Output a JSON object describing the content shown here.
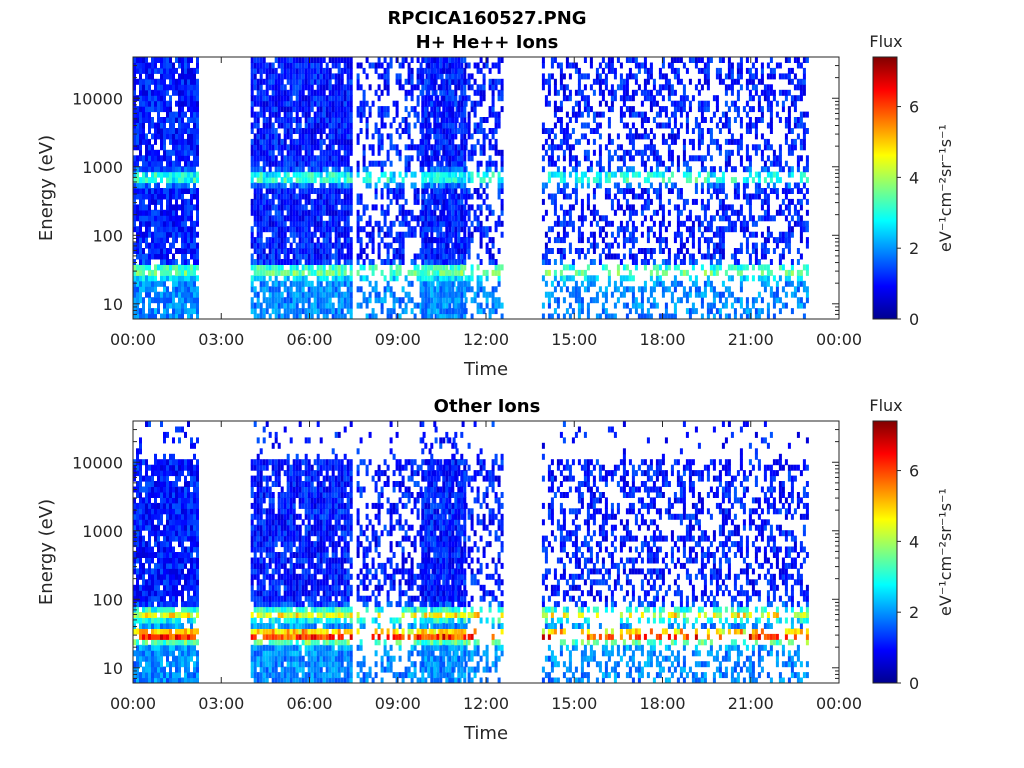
{
  "figure": {
    "title": "RPCICA160527.PNG"
  },
  "colorbar": {
    "title": "Flux",
    "label": "eV⁻¹cm⁻²sr⁻¹s⁻¹",
    "ticks": [
      "0",
      "2",
      "4",
      "6"
    ],
    "range": [
      0,
      7.4
    ],
    "colormap": "jet"
  },
  "chart_data": [
    {
      "type": "heatmap",
      "title": "H+ He++ Ions",
      "xlabel": "Time",
      "ylabel": "Energy (eV)",
      "x_ticks": [
        "00:00",
        "03:00",
        "06:00",
        "09:00",
        "12:00",
        "15:00",
        "18:00",
        "21:00",
        "00:00"
      ],
      "xlim_hours": [
        0,
        24
      ],
      "y_scale": "log",
      "y_ticks": [
        "10",
        "100",
        "1000",
        "10000"
      ],
      "ylim_eV": [
        6,
        40000
      ],
      "data_intervals_hours": [
        [
          0.0,
          2.2
        ],
        [
          4.0,
          7.4
        ],
        [
          7.6,
          12.5
        ],
        [
          9.8,
          11.3
        ],
        [
          13.9,
          22.9
        ]
      ],
      "features": [
        {
          "name": "solar wind band",
          "energy_eV": 700,
          "intensity": 2.5
        },
        {
          "name": "low-energy band",
          "energy_eV": 30,
          "intensity": 2.0
        }
      ]
    },
    {
      "type": "heatmap",
      "title": "Other Ions",
      "xlabel": "Time",
      "ylabel": "Energy (eV)",
      "x_ticks": [
        "00:00",
        "03:00",
        "06:00",
        "09:00",
        "12:00",
        "15:00",
        "18:00",
        "21:00",
        "00:00"
      ],
      "xlim_hours": [
        0,
        24
      ],
      "y_scale": "log",
      "y_ticks": [
        "10",
        "100",
        "1000",
        "10000"
      ],
      "ylim_eV": [
        6,
        40000
      ],
      "data_intervals_hours": [
        [
          0.0,
          2.2
        ],
        [
          4.0,
          7.4
        ],
        [
          7.6,
          12.5
        ],
        [
          9.8,
          11.3
        ],
        [
          13.9,
          22.9
        ]
      ],
      "features": [
        {
          "name": "intense low-energy band",
          "energy_eV": 30,
          "intensity": 5.0
        },
        {
          "name": "mid-energy band",
          "energy_eV": 60,
          "intensity": 4.0
        }
      ]
    }
  ]
}
